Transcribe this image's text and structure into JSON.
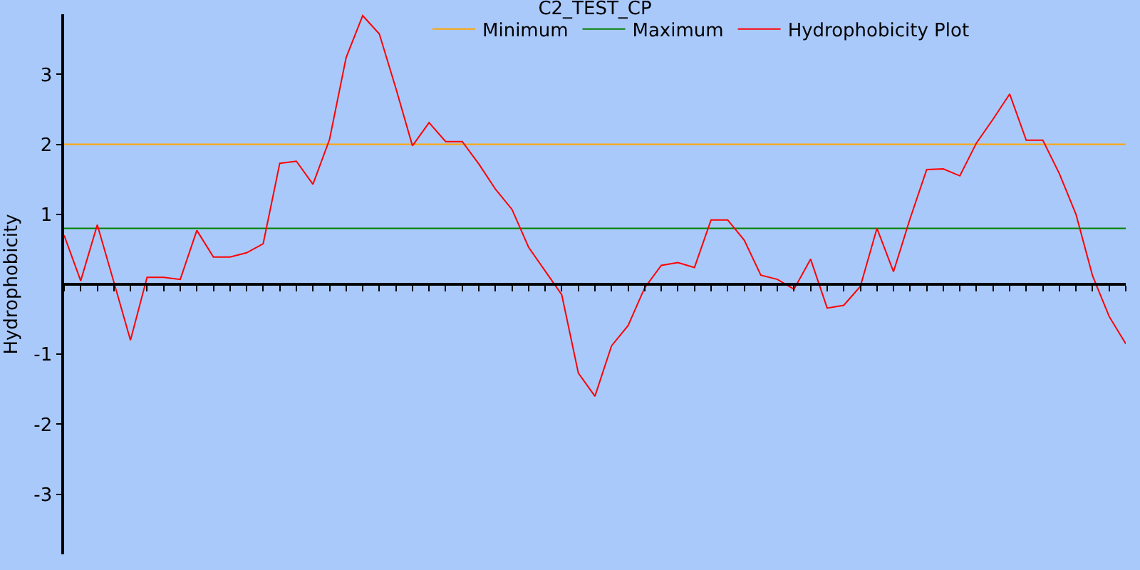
{
  "chart_data": {
    "type": "line",
    "title": "C2_TEST_CP",
    "ylabel": "Hydrophobicity",
    "categories": [
      null,
      null,
      null,
      null,
      null,
      null,
      null,
      null,
      null,
      null,
      null,
      null,
      null,
      null,
      null,
      null,
      null,
      null,
      null,
      null,
      null,
      null,
      null,
      null,
      null,
      null,
      null,
      null,
      null,
      null,
      null,
      null,
      null,
      null,
      null,
      null,
      null,
      null,
      null,
      null,
      null,
      null,
      null,
      null,
      null,
      null,
      null,
      null,
      null,
      null,
      null,
      null,
      null,
      null,
      null,
      null,
      null,
      null,
      null,
      null,
      null,
      null,
      null,
      null,
      null
    ],
    "series": [
      {
        "name": "Minimum",
        "color": "#ffa500",
        "values": [
          2,
          2,
          2,
          2,
          2,
          2,
          2,
          2,
          2,
          2,
          2,
          2,
          2,
          2,
          2,
          2,
          2,
          2,
          2,
          2,
          2,
          2,
          2,
          2,
          2,
          2,
          2,
          2,
          2,
          2,
          2,
          2,
          2,
          2,
          2,
          2,
          2,
          2,
          2,
          2,
          2,
          2,
          2,
          2,
          2,
          2,
          2,
          2,
          2,
          2,
          2,
          2,
          2,
          2,
          2,
          2,
          2,
          2,
          2,
          2,
          2,
          2,
          2,
          2,
          2
        ]
      },
      {
        "name": "Maximum",
        "color": "#008000",
        "values": [
          0.8,
          0.8,
          0.8,
          0.8,
          0.8,
          0.8,
          0.8,
          0.8,
          0.8,
          0.8,
          0.8,
          0.8,
          0.8,
          0.8,
          0.8,
          0.8,
          0.8,
          0.8,
          0.8,
          0.8,
          0.8,
          0.8,
          0.8,
          0.8,
          0.8,
          0.8,
          0.8,
          0.8,
          0.8,
          0.8,
          0.8,
          0.8,
          0.8,
          0.8,
          0.8,
          0.8,
          0.8,
          0.8,
          0.8,
          0.8,
          0.8,
          0.8,
          0.8,
          0.8,
          0.8,
          0.8,
          0.8,
          0.8,
          0.8,
          0.8,
          0.8,
          0.8,
          0.8,
          0.8,
          0.8,
          0.8,
          0.8,
          0.8,
          0.8,
          0.8,
          0.8,
          0.8,
          0.8,
          0.8,
          0.8
        ]
      },
      {
        "name": "Hydrophobicity Plot",
        "color": "#ff0000",
        "values": [
          0.7,
          0.05,
          0.85,
          0.03,
          -0.8,
          0.1,
          0.1,
          0.07,
          0.77,
          0.39,
          0.39,
          0.45,
          0.58,
          1.73,
          1.76,
          1.43,
          2.07,
          3.24,
          3.84,
          3.58,
          2.8,
          1.98,
          2.31,
          2.04,
          2.04,
          1.72,
          1.36,
          1.07,
          0.53,
          0.19,
          -0.15,
          -1.27,
          -1.6,
          -0.88,
          -0.59,
          -0.05,
          0.27,
          0.31,
          0.24,
          0.92,
          0.92,
          0.63,
          0.13,
          0.07,
          -0.07,
          0.36,
          -0.34,
          -0.3,
          -0.03,
          0.8,
          0.18,
          0.94,
          1.64,
          1.65,
          1.55,
          2.02,
          2.36,
          2.72,
          2.06,
          2.06,
          1.58,
          1.0,
          0.12,
          -0.46,
          -0.85
        ]
      }
    ],
    "ylim": [
      -3.86,
      3.86
    ],
    "yticks": [
      -3,
      -2,
      -1,
      1,
      2,
      3
    ],
    "legend": "top",
    "marker": "none",
    "line_style": "solid"
  }
}
